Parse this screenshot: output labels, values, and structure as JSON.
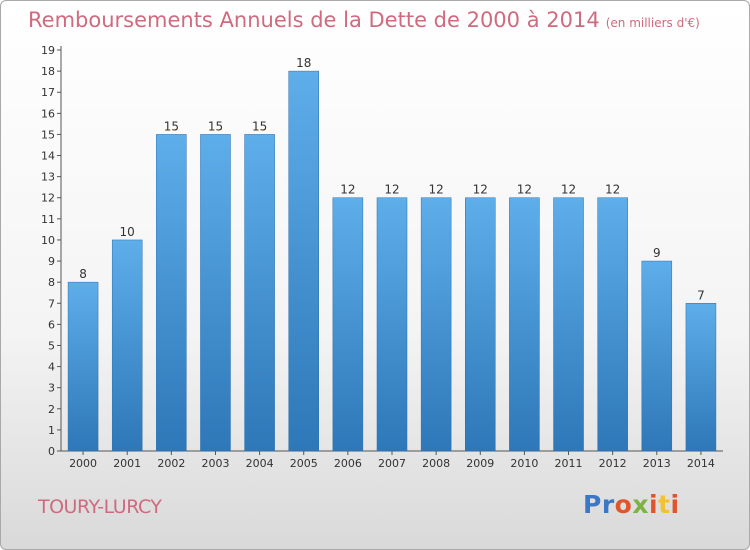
{
  "header": {
    "title": "Remboursements Annuels de la Dette de 2000 à 2014",
    "unit": "(en milliers d'€)"
  },
  "footer": {
    "commune": "TOURY-LURCY",
    "logo_text": "Proxiti",
    "logo_colors": [
      "#3a78c6",
      "#3a78c6",
      "#e0552b",
      "#7cb342",
      "#e0552b",
      "#f2c230",
      "#e0552b"
    ]
  },
  "colors": {
    "bar_top": "#5eaeea",
    "bar_bottom": "#2e77b8",
    "title": "#d06a7f"
  },
  "chart_data": {
    "type": "bar",
    "title": "Remboursements Annuels de la Dette de 2000 à 2014",
    "subtitle": "(en milliers d'€)",
    "categories": [
      "2000",
      "2001",
      "2002",
      "2003",
      "2004",
      "2005",
      "2006",
      "2007",
      "2008",
      "2009",
      "2010",
      "2011",
      "2012",
      "2013",
      "2014"
    ],
    "values": [
      8,
      10,
      15,
      15,
      15,
      18,
      12,
      12,
      12,
      12,
      12,
      12,
      12,
      9,
      7
    ],
    "ylim": [
      0,
      19
    ],
    "yticks": [
      0,
      1,
      2,
      3,
      4,
      5,
      6,
      7,
      8,
      9,
      10,
      11,
      12,
      13,
      14,
      15,
      16,
      17,
      18,
      19
    ],
    "grid": false
  }
}
